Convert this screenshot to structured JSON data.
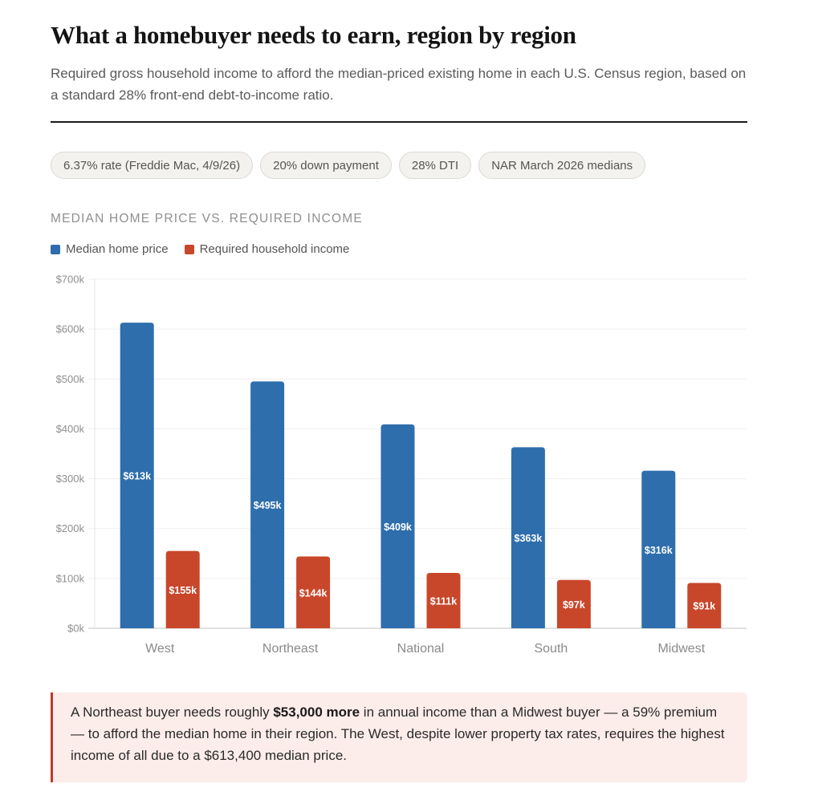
{
  "header": {
    "title": "What a homebuyer needs to earn, region by region",
    "subtitle": "Required gross household income to afford the median-priced existing home in each U.S. Census region, based on a standard 28% front-end debt-to-income ratio."
  },
  "chips": [
    {
      "label": "6.37% rate (Freddie Mac, 4/9/26)"
    },
    {
      "label": "20% down payment"
    },
    {
      "label": "28% DTI"
    },
    {
      "label": "NAR March 2026 medians"
    }
  ],
  "section_label": "MEDIAN HOME PRICE VS. REQUIRED INCOME",
  "colors": {
    "price": "#2e6ead",
    "income": "#c8472b",
    "callout_border": "#c0392b",
    "callout_bg": "#fcedea"
  },
  "chart_data": {
    "type": "bar",
    "title": "MEDIAN HOME PRICE VS. REQUIRED INCOME",
    "xlabel": "",
    "ylabel": "",
    "categories": [
      "West",
      "Northeast",
      "National",
      "South",
      "Midwest"
    ],
    "series": [
      {
        "name": "Median home price",
        "color": "#2e6ead",
        "values": [
          613,
          495,
          409,
          363,
          316
        ],
        "labels": [
          "$613k",
          "$495k",
          "$409k",
          "$363k",
          "$316k"
        ]
      },
      {
        "name": "Required household income",
        "color": "#c8472b",
        "values": [
          155,
          144,
          111,
          97,
          91
        ],
        "labels": [
          "$155k",
          "$144k",
          "$111k",
          "$97k",
          "$91k"
        ]
      }
    ],
    "units": "thousands of USD",
    "ylim": [
      0,
      700
    ],
    "yticks": [
      0,
      100,
      200,
      300,
      400,
      500,
      600,
      700
    ],
    "ytick_labels": [
      "$0k",
      "$100k",
      "$200k",
      "$300k",
      "$400k",
      "$500k",
      "$600k",
      "$700k"
    ],
    "grid": true,
    "legend": "top-left"
  },
  "callout": {
    "before": "A Northeast buyer needs roughly ",
    "bold": "$53,000 more",
    "after": " in annual income than a Midwest buyer — a 59% premium — to afford the median home in their region. The West, despite lower property tax rates, requires the highest income of all due to a $613,400 median price."
  }
}
